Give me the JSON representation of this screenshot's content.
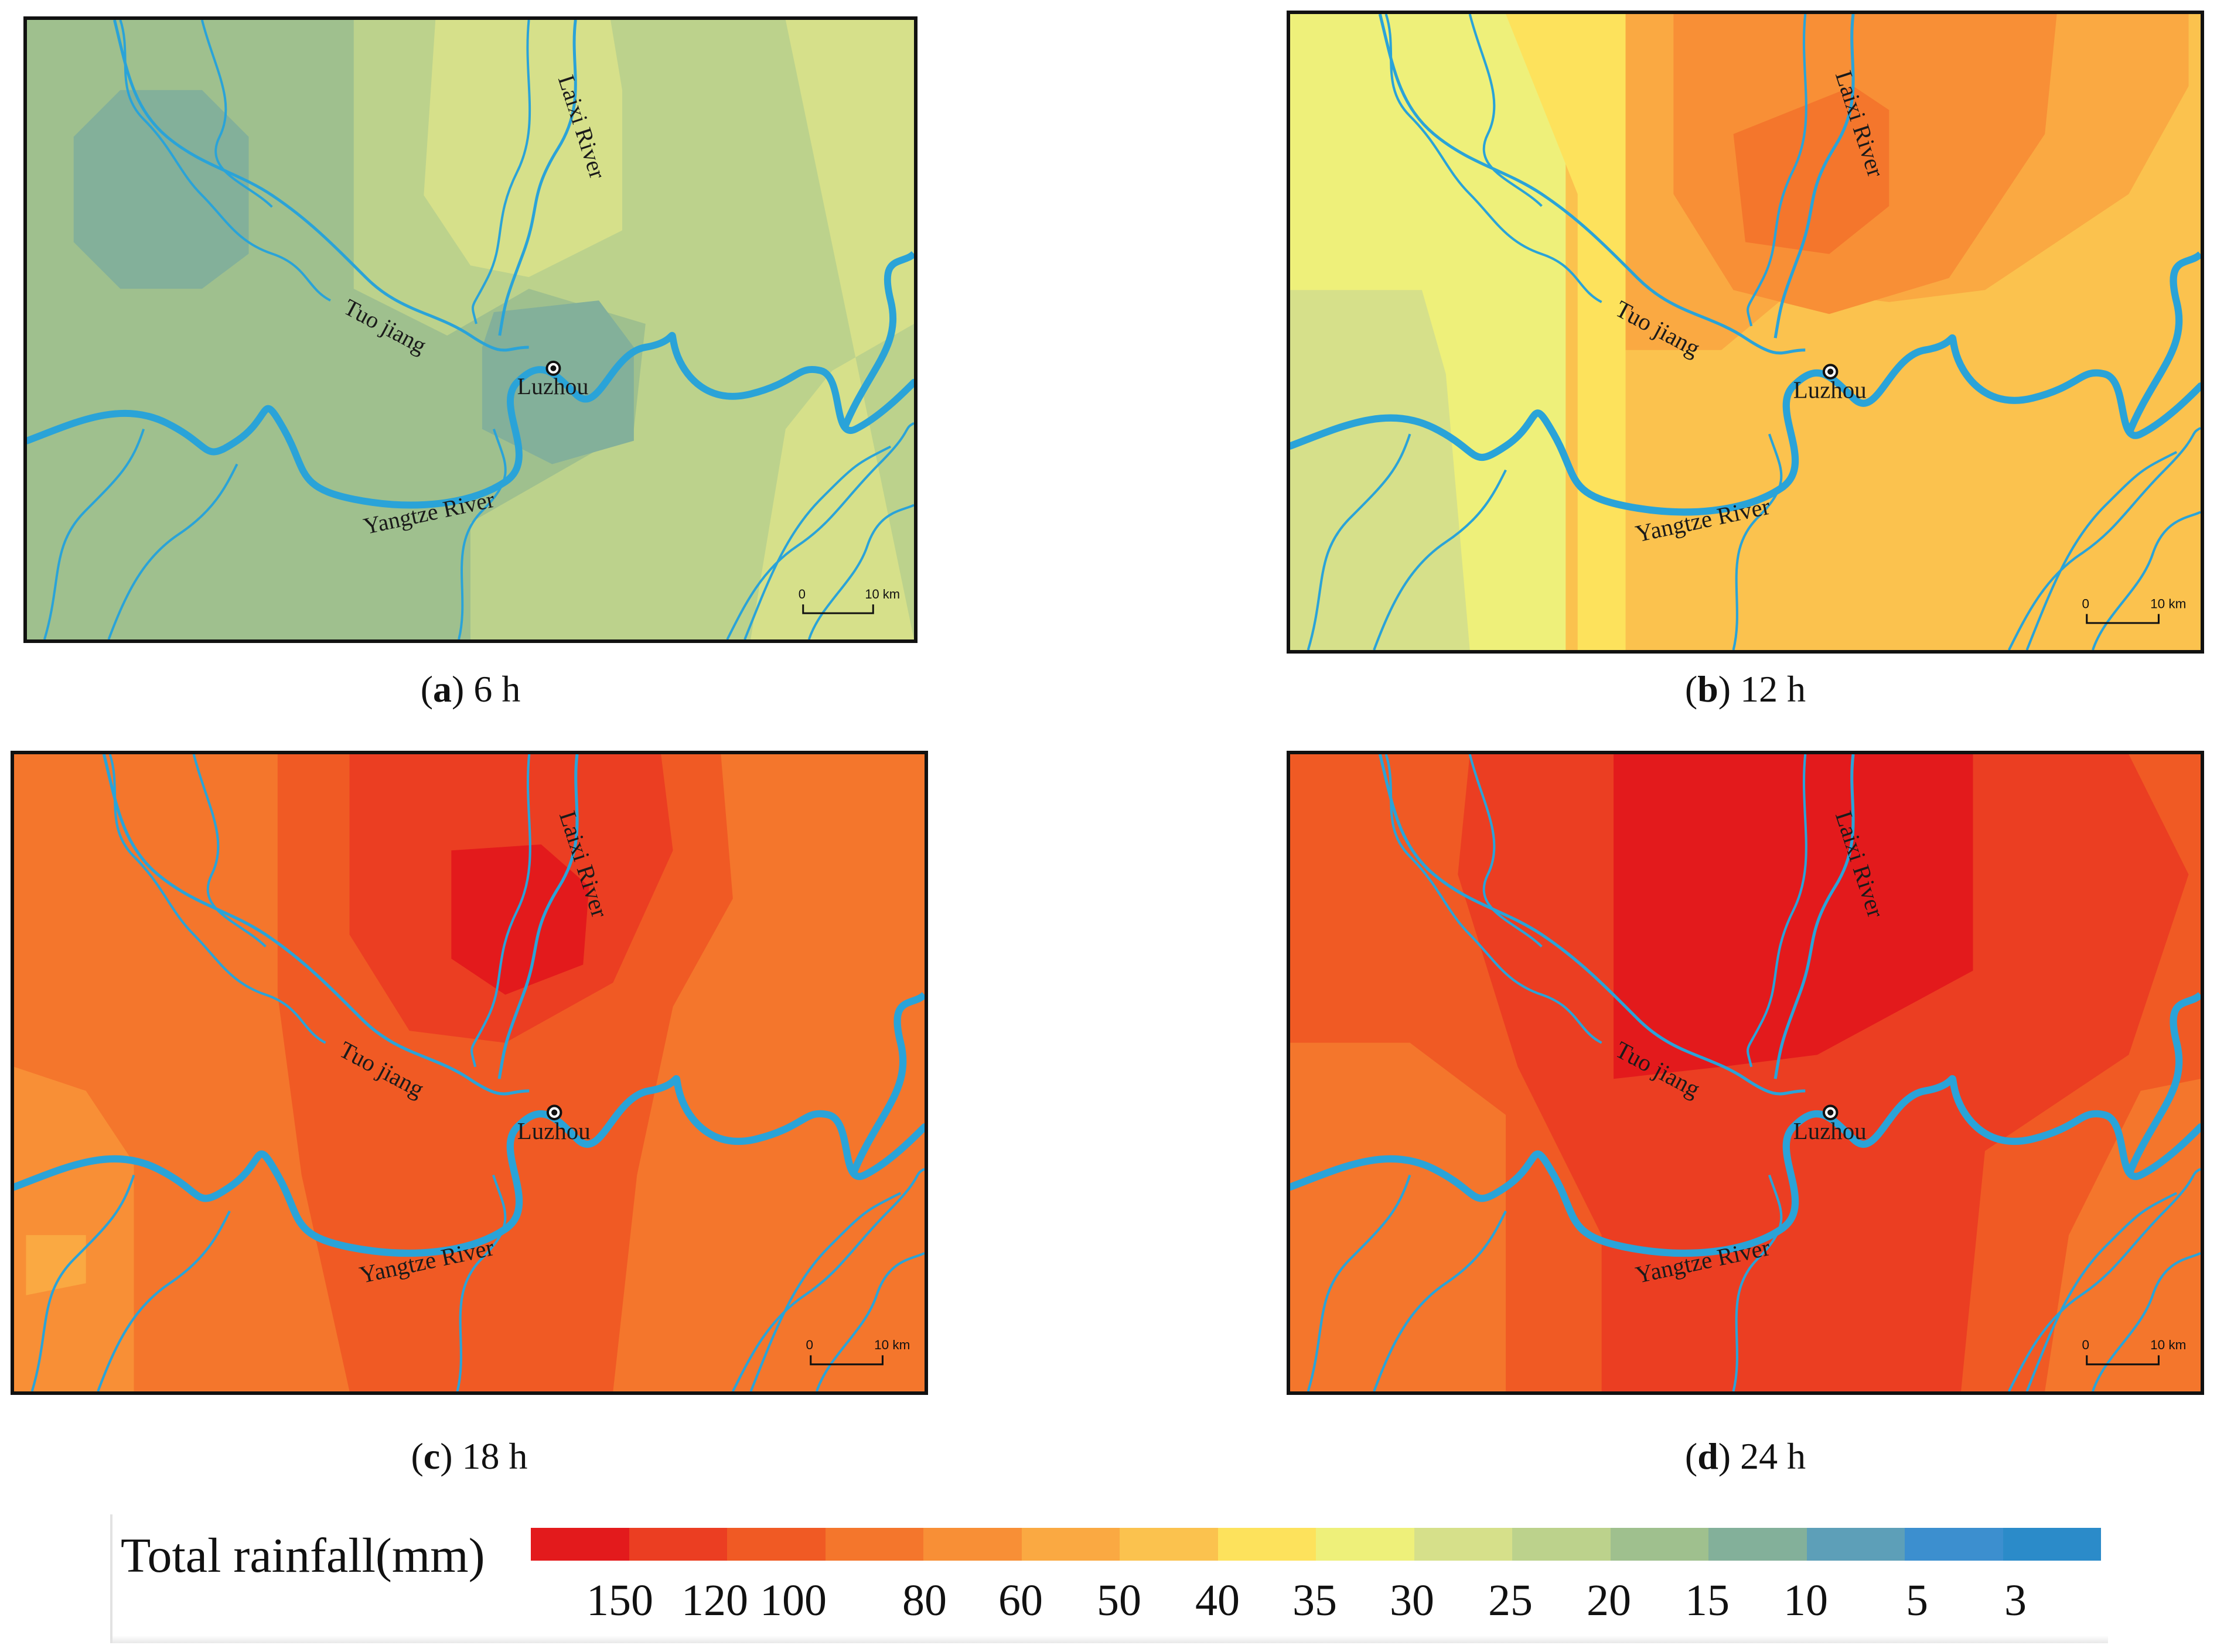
{
  "panels": [
    {
      "caption_letter": "a",
      "caption_rest": " 6 h",
      "scale": {
        "zero": "0",
        "ten": "10 km"
      },
      "labels": {
        "laixi": "Laixi River",
        "tuo": "Tuo jiang",
        "city": "Luzhou",
        "yangtze": "Yangtze River"
      }
    },
    {
      "caption_letter": "b",
      "caption_rest": " 12 h",
      "scale": {
        "zero": "0",
        "ten": "10 km"
      },
      "labels": {
        "laixi": "Laixi River",
        "tuo": "Tuo jiang",
        "city": "Luzhou",
        "yangtze": "Yangtze River"
      }
    },
    {
      "caption_letter": "c",
      "caption_rest": " 18 h",
      "scale": {
        "zero": "0",
        "ten": "10 km"
      },
      "labels": {
        "laixi": "Laixi River",
        "tuo": "Tuo jiang",
        "city": "Luzhou",
        "yangtze": "Yangtze River"
      }
    },
    {
      "caption_letter": "d",
      "caption_rest": " 24 h",
      "scale": {
        "zero": "0",
        "ten": "10 km"
      },
      "labels": {
        "laixi": "Laixi River",
        "tuo": "Tuo jiang",
        "city": "Luzhou",
        "yangtze": "Yangtze River"
      }
    }
  ],
  "legend": {
    "title": "Total rainfall(mm)",
    "ticks": [
      "150",
      "120",
      "100",
      "80",
      "60",
      "50",
      "40",
      "35",
      "30",
      "25",
      "20",
      "15",
      "10",
      "5",
      "3"
    ],
    "colors": [
      "#e31a1c",
      "#eb3e22",
      "#f05a24",
      "#f4762c",
      "#f88f36",
      "#faa942",
      "#fbc24e",
      "#fde25c",
      "#eef07a",
      "#d6e08a",
      "#bcd28c",
      "#9fc08e",
      "#83b09a",
      "#5d9fb8",
      "#3c8fcf",
      "#2b8bc9"
    ]
  },
  "colors": {
    "river": "#2aa3d8",
    "city_marker": "#111111"
  }
}
